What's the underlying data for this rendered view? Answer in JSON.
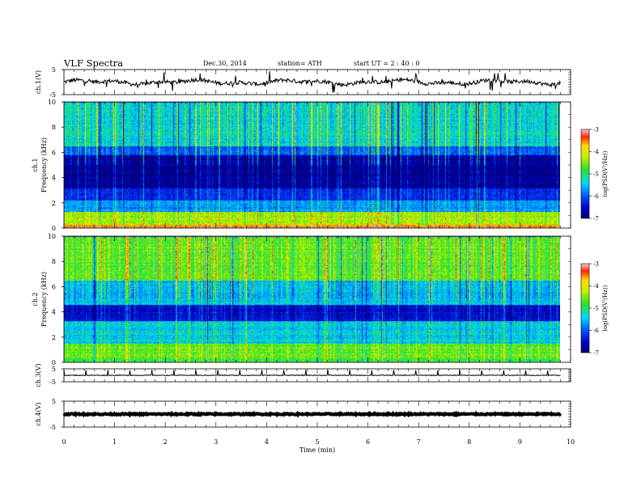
{
  "header": {
    "title": "VLF  Spectra",
    "date": "Dec.30, 2014",
    "station": "station= ATH",
    "start": "start  UT  =   2 : 40 : 0"
  },
  "colors": {
    "spectrum_low": "#00007a",
    "spectrum_mid_blue": "#0050ff",
    "spectrum_cyan": "#00e0ff",
    "spectrum_green": "#40e000",
    "spectrum_yellow": "#ffff00",
    "spectrum_red": "#ff0000",
    "spectrum_high": "#ffb0c0"
  },
  "chart_data": [
    {
      "type": "line",
      "panel": "ch1-waveform",
      "ylabel": "ch.1(V)",
      "ylim": [
        -5,
        5
      ],
      "yticks": [
        "5",
        "-5"
      ],
      "xlim": [
        0,
        10
      ],
      "baseline": 0.0,
      "noise": "continuous broadband noise with frequent sferic spikes"
    },
    {
      "type": "heatmap",
      "panel": "ch1-spectrogram",
      "ylabel": "ch.1",
      "ylabel2": "Frequency  (kHz)",
      "ylim": [
        0,
        10
      ],
      "yticks": [
        "0",
        "2",
        "4",
        "6",
        "8",
        "10"
      ],
      "xlim": [
        0,
        10
      ],
      "colorbar": {
        "label": "log(PSD(V²/Hz))",
        "range": [
          -7,
          -3
        ],
        "ticks": [
          "-3",
          "-4",
          "-5",
          "-6",
          "-7"
        ]
      },
      "bands": [
        {
          "fmin": 0.0,
          "fmax": 0.3,
          "level": -3.5
        },
        {
          "fmin": 0.3,
          "fmax": 1.3,
          "level": -4.3
        },
        {
          "fmin": 1.3,
          "fmax": 2.2,
          "level": -5.7
        },
        {
          "fmin": 2.2,
          "fmax": 3.2,
          "level": -6.3
        },
        {
          "fmin": 3.2,
          "fmax": 5.8,
          "level": -6.8
        },
        {
          "fmin": 5.8,
          "fmax": 6.5,
          "level": -6.0
        },
        {
          "fmin": 6.5,
          "fmax": 10.0,
          "level": -5.3
        }
      ],
      "data_end_min": 9.8
    },
    {
      "type": "heatmap",
      "panel": "ch2-spectrogram",
      "ylabel": "ch.2",
      "ylabel2": "Frequency  (kHz)",
      "ylim": [
        0,
        10
      ],
      "yticks": [
        "0",
        "2",
        "4",
        "6",
        "8",
        "10"
      ],
      "xlim": [
        0,
        10
      ],
      "colorbar": {
        "label": "log(PSD(V²/Hz))",
        "range": [
          -7,
          -3
        ],
        "ticks": [
          "-3",
          "-4",
          "-5",
          "-6",
          "-7"
        ]
      },
      "bands": [
        {
          "fmin": 0.0,
          "fmax": 0.3,
          "level": -4.8
        },
        {
          "fmin": 0.3,
          "fmax": 1.5,
          "level": -4.6
        },
        {
          "fmin": 1.5,
          "fmax": 3.3,
          "level": -5.4
        },
        {
          "fmin": 3.3,
          "fmax": 4.6,
          "level": -6.5
        },
        {
          "fmin": 4.6,
          "fmax": 6.5,
          "level": -5.5
        },
        {
          "fmin": 6.5,
          "fmax": 10.0,
          "level": -4.6
        }
      ],
      "data_end_min": 9.8
    },
    {
      "type": "line",
      "panel": "ch3-waveform",
      "ylabel": "ch.3(V)",
      "ylim": [
        -5,
        5
      ],
      "yticks": [
        "5",
        "-5"
      ],
      "xlim": [
        0,
        10
      ],
      "baseline": 0.0,
      "noise": "flat trace with periodic short pulses"
    },
    {
      "type": "line",
      "panel": "ch4-waveform",
      "ylabel": "ch.4(V)",
      "ylim": [
        -5,
        5
      ],
      "yticks": [
        "5",
        "-5"
      ],
      "xlim": [
        0,
        10
      ],
      "baseline": 0.0,
      "noise": "thick flat trace"
    }
  ],
  "xaxis": {
    "label": "Time  (min)",
    "ticks": [
      "0",
      "1",
      "2",
      "3",
      "4",
      "5",
      "6",
      "7",
      "8",
      "9",
      "10"
    ]
  }
}
